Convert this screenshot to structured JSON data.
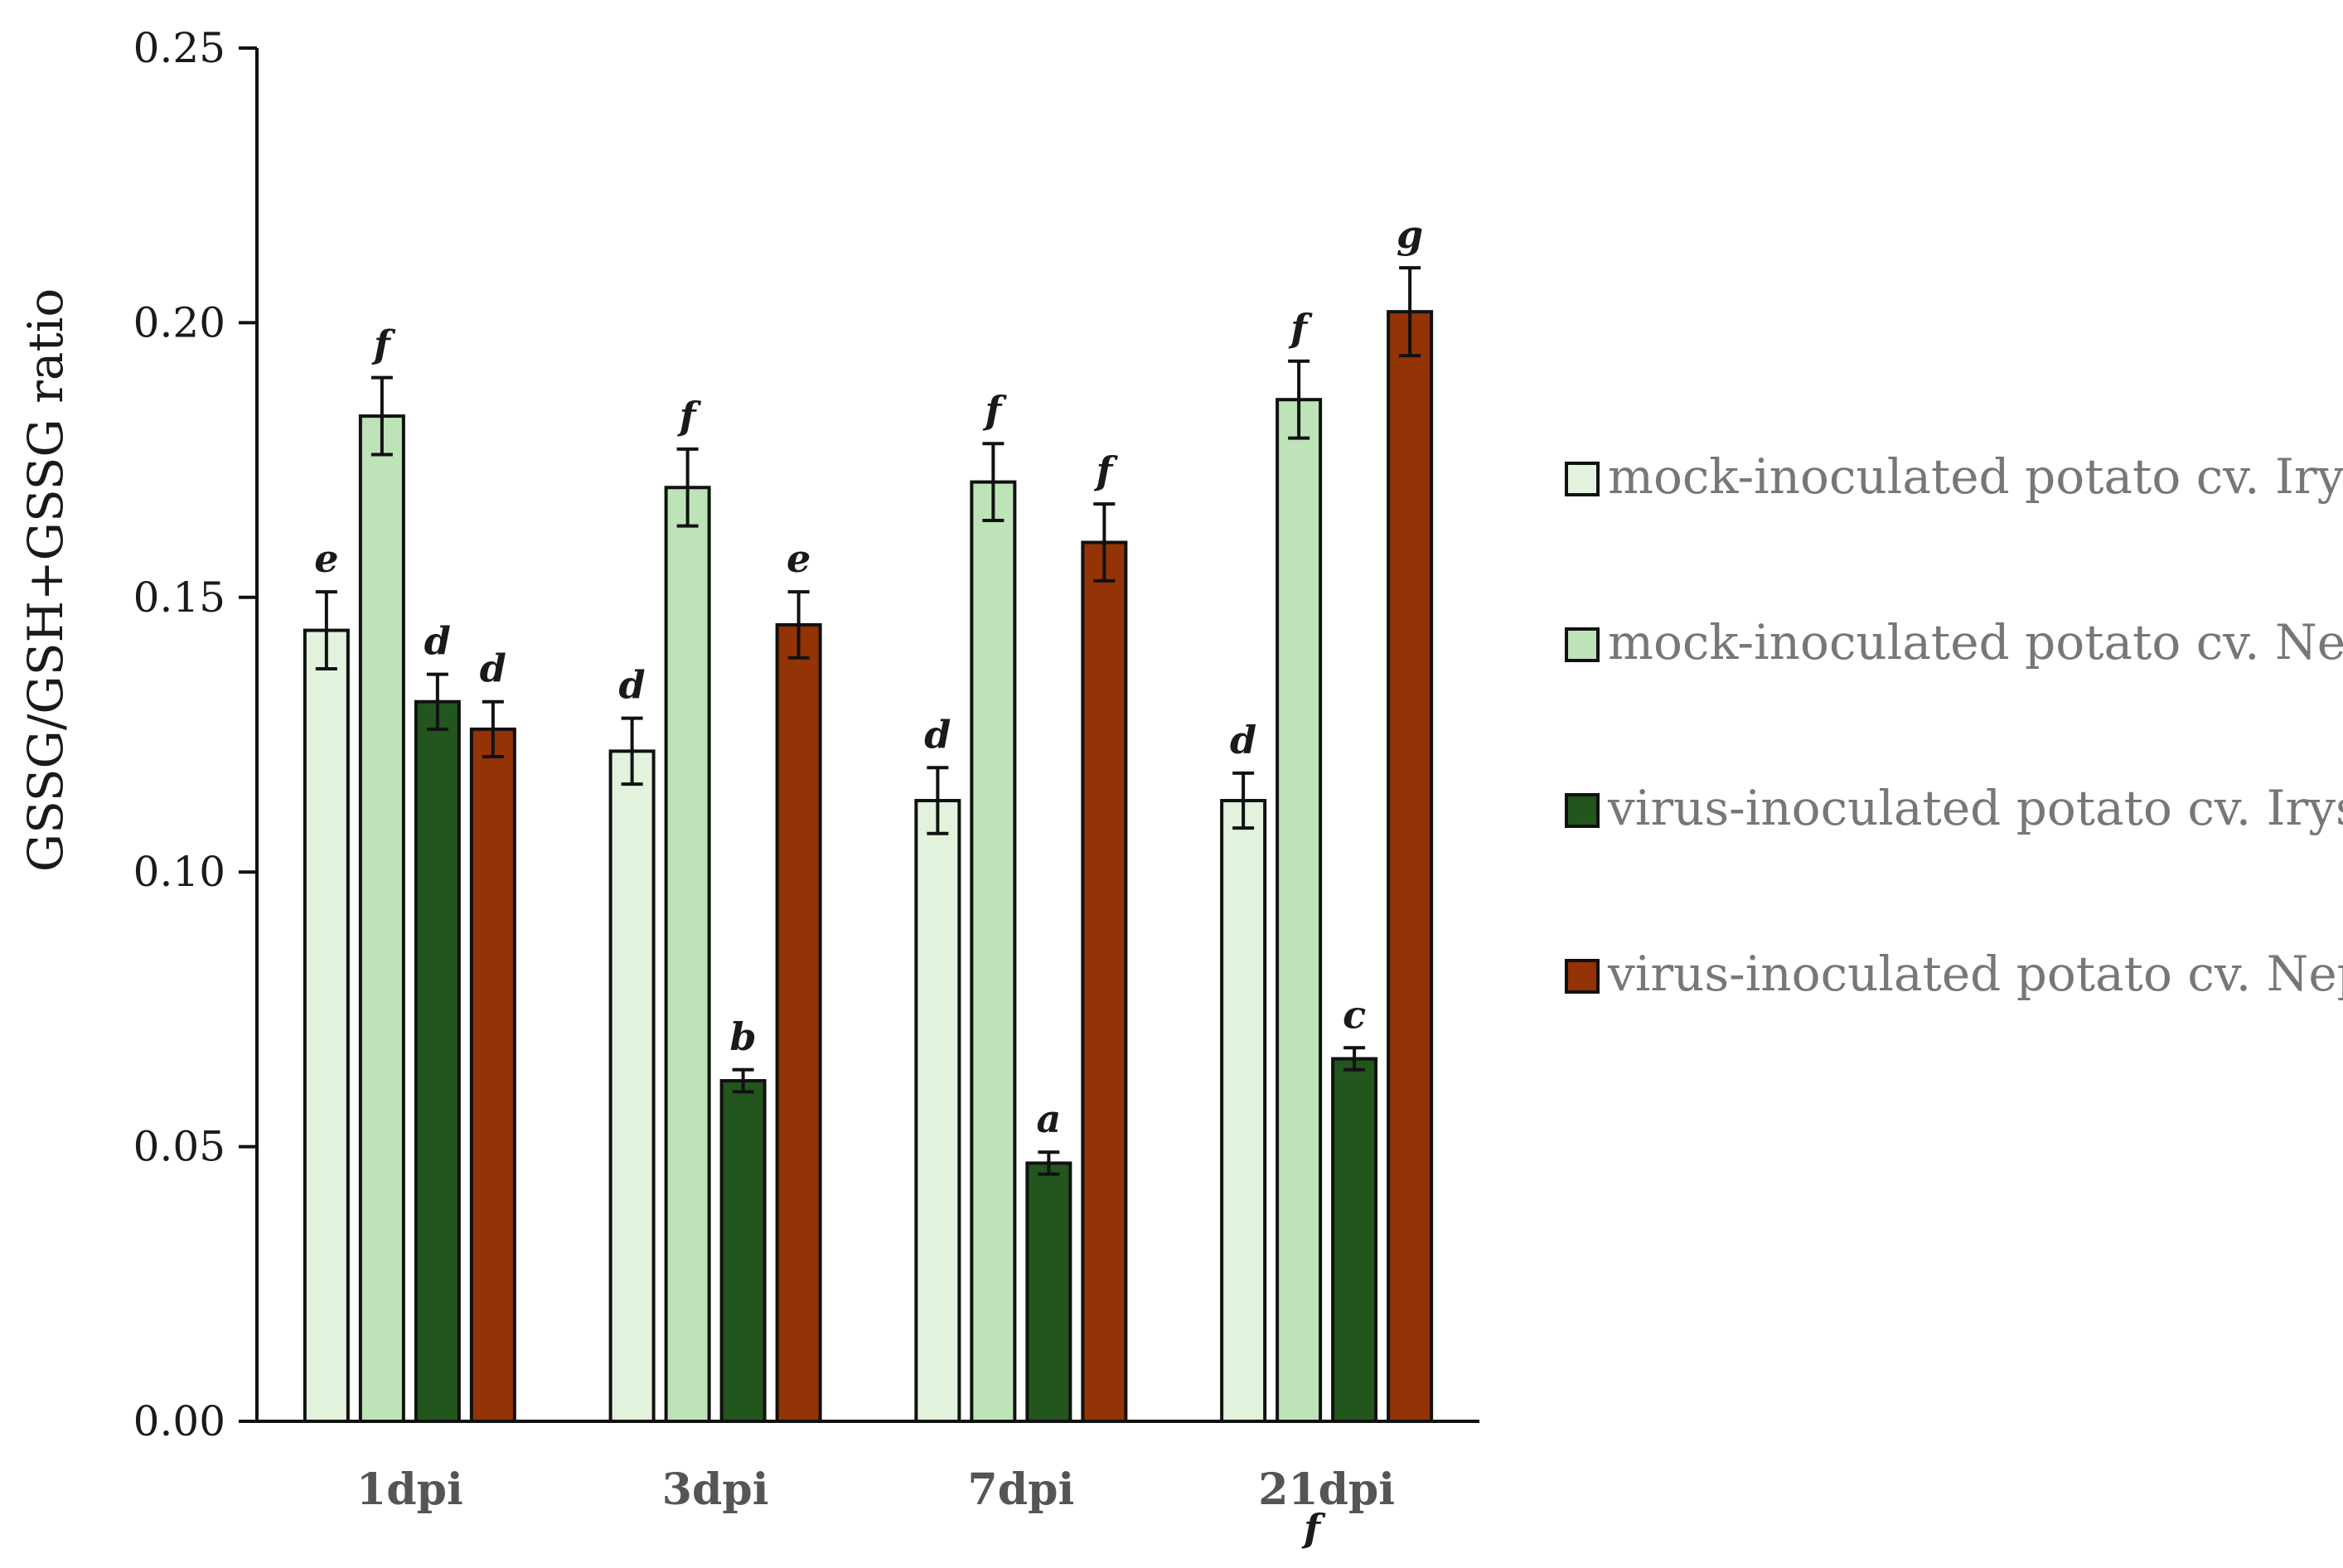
{
  "chart_data": {
    "type": "bar",
    "ylabel": "GSSG/GSH+GSSG ratio",
    "ylim": [
      0,
      0.25
    ],
    "yticks": [
      "0.00",
      "0.05",
      "0.10",
      "0.15",
      "0.20",
      "0.25"
    ],
    "categories": [
      "1dpi",
      "3dpi",
      "7dpi",
      "21dpi"
    ],
    "series": [
      {
        "name": "mock-inoculated potato cv. Irys",
        "color": "#e2f2dd",
        "values": [
          0.144,
          0.122,
          0.113,
          0.113
        ],
        "errors": [
          0.007,
          0.006,
          0.006,
          0.005
        ],
        "letters": [
          "e",
          "d",
          "d",
          "d"
        ]
      },
      {
        "name": "mock-inoculated potato cv. Neptun",
        "color": "#bee3b9",
        "values": [
          0.183,
          0.17,
          0.171,
          0.186
        ],
        "errors": [
          0.007,
          0.007,
          0.007,
          0.007
        ],
        "letters": [
          "f",
          "f",
          "f",
          "f"
        ]
      },
      {
        "name": "virus-inoculated potato cv. Irys",
        "color": "#23561d",
        "values": [
          0.131,
          0.062,
          0.047,
          0.066
        ],
        "errors": [
          0.005,
          0.002,
          0.002,
          0.002
        ],
        "letters": [
          "d",
          "b",
          "a",
          "c"
        ]
      },
      {
        "name": "virus-inoculated potato cv. Neptun",
        "color": "#943305",
        "values": [
          0.126,
          0.145,
          0.16,
          0.202
        ],
        "errors": [
          0.005,
          0.006,
          0.007,
          0.008
        ],
        "letters": [
          "d",
          "e",
          "f",
          "g"
        ]
      }
    ],
    "annotations": [
      "f"
    ],
    "legend": "right",
    "grid": false
  }
}
